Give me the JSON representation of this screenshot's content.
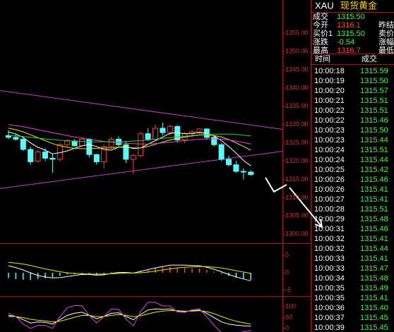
{
  "chart_data": [
    {
      "type": "candlestick",
      "ylim": [
        1298.5,
        1364.1
      ],
      "yticks": [
        {
          "value": 1300,
          "label": "1300.00"
        },
        {
          "value": 1305,
          "label": "1305.00"
        },
        {
          "value": 1310,
          "label": "1310.00"
        },
        {
          "value": 1315,
          "label": "1315.00"
        },
        {
          "value": 1320,
          "label": "1320.00"
        },
        {
          "value": 1325,
          "label": "1325.00"
        },
        {
          "value": 1330,
          "label": "1330.00"
        },
        {
          "value": 1335,
          "label": "1335.00"
        },
        {
          "value": 1340,
          "label": "1340.00"
        },
        {
          "value": 1345,
          "label": "1345.00"
        },
        {
          "value": 1350,
          "label": "1350.00"
        },
        {
          "value": 1355,
          "label": "1355.00"
        }
      ],
      "up_color": "#ff3c3c",
      "down_color": "#54fcfc",
      "open": [
        1327.0,
        1326.5,
        1326.0,
        1323.2,
        1320.0,
        1322.5,
        1320.8,
        1320.5,
        1324.5,
        1325.5,
        1324.2,
        1326.0,
        1321.8,
        1319.8,
        1324.0,
        1326.0,
        1324.5,
        1320.5,
        1321.5,
        1327.5,
        1326.0,
        1329.0,
        1327.8,
        1329.5,
        1325.8,
        1327.5,
        1328.0,
        1328.8,
        1326.5,
        1324.5,
        1320.5,
        1319.0,
        1317.2,
        1317.0
      ],
      "high": [
        1328.5,
        1327.5,
        1326.5,
        1324.0,
        1323.0,
        1323.5,
        1322.0,
        1325.0,
        1326.0,
        1326.0,
        1326.5,
        1326.3,
        1322.0,
        1324.5,
        1326.5,
        1326.8,
        1325.5,
        1322.0,
        1328.0,
        1329.0,
        1330.0,
        1330.5,
        1330.0,
        1329.8,
        1328.0,
        1328.5,
        1329.0,
        1329.0,
        1327.0,
        1325.0,
        1321.5,
        1320.0,
        1318.0,
        1317.5
      ],
      "low": [
        1326.0,
        1325.5,
        1322.8,
        1319.0,
        1319.5,
        1320.0,
        1316.8,
        1320.0,
        1324.0,
        1324.0,
        1323.8,
        1321.0,
        1319.0,
        1318.0,
        1323.5,
        1324.0,
        1319.5,
        1316.5,
        1321.0,
        1325.5,
        1325.5,
        1327.0,
        1327.0,
        1325.0,
        1325.0,
        1326.5,
        1327.5,
        1325.8,
        1324.0,
        1320.0,
        1318.5,
        1316.8,
        1315.0,
        1316.0
      ],
      "close": [
        1326.5,
        1326.0,
        1323.2,
        1319.8,
        1322.5,
        1320.8,
        1320.5,
        1324.5,
        1325.5,
        1324.2,
        1326.0,
        1321.8,
        1319.8,
        1324.0,
        1326.0,
        1324.5,
        1320.5,
        1321.5,
        1327.5,
        1326.0,
        1329.0,
        1327.8,
        1329.5,
        1325.8,
        1327.5,
        1328.0,
        1328.8,
        1326.5,
        1324.5,
        1320.5,
        1319.0,
        1317.2,
        1317.0,
        1316.3
      ],
      "series": [
        {
          "color": "#ffffff",
          "values": [
            1328,
            1327.4,
            1326.5,
            1325,
            1323.8,
            1323,
            1322,
            1322.3,
            1322.8,
            1323.5,
            1324.2,
            1324.5,
            1324,
            1323.2,
            1323,
            1323.8,
            1324,
            1323.4,
            1323.6,
            1324.6,
            1325.6,
            1326.6,
            1327.6,
            1327.8,
            1327.5,
            1327.6,
            1327.8,
            1327.6,
            1326.9,
            1325.6,
            1324,
            1322.2,
            1320.2,
            1318.7
          ]
        },
        {
          "color": "#e8e800",
          "values": [
            1329,
            1328.6,
            1328,
            1327.2,
            1326.4,
            1325.6,
            1324.8,
            1324.2,
            1323.8,
            1323.5,
            1323.4,
            1323.4,
            1323.5,
            1323.6,
            1323.6,
            1323.8,
            1323.8,
            1323.6,
            1323.6,
            1324,
            1324.6,
            1325.2,
            1325.8,
            1326.2,
            1326.6,
            1326.9,
            1327.1,
            1327.2,
            1327.0,
            1326.6,
            1325.9,
            1325,
            1324,
            1323
          ]
        },
        {
          "color": "#e040e0",
          "values": [
            1330,
            1329.7,
            1329.4,
            1329,
            1328.6,
            1328.2,
            1327.8,
            1327.4,
            1327,
            1326.6,
            1326.3,
            1326,
            1325.7,
            1325.4,
            1325.2,
            1325,
            1324.9,
            1324.8,
            1324.7,
            1324.7,
            1324.8,
            1325,
            1325.2,
            1325.4,
            1325.6,
            1325.8,
            1326,
            1326.1,
            1326.1,
            1326,
            1325.8,
            1325.5,
            1325.1,
            1324.7
          ]
        },
        {
          "color": "#30d030",
          "values": [
            1327,
            1326.9,
            1326.7,
            1326.5,
            1326.3,
            1326.1,
            1325.9,
            1325.7,
            1325.6,
            1325.5,
            1325.4,
            1325.3,
            1325.3,
            1325.3,
            1325.3,
            1325.3,
            1325.4,
            1325.5,
            1325.6,
            1325.8,
            1326,
            1326.2,
            1326.4,
            1326.6,
            1326.8,
            1327,
            1327.2,
            1327.3,
            1327.4,
            1327.4,
            1327.4,
            1327.3,
            1327.1,
            1326.9
          ]
        }
      ],
      "trendlines": [
        {
          "color": "#c040c0",
          "values": [
            1339.3,
            1328.7
          ]
        },
        {
          "color": "#c040c0",
          "values": [
            1312.5,
            1322.7
          ]
        }
      ]
    },
    {
      "type": "macd",
      "ylim": [
        -6.3,
        7.5
      ],
      "yticks": [
        5,
        0,
        -5
      ],
      "up_color": "#ff3c3c",
      "down_color": "#54fcfc",
      "values": [
        -1.5,
        -1.8,
        -2,
        -2.1,
        -1.8,
        -1.6,
        -1.3,
        -0.9,
        -0.5,
        -0.4,
        -0.3,
        -0.5,
        -0.6,
        -0.3,
        0.2,
        0.3,
        0.1,
        -0.1,
        0.6,
        0.9,
        1.4,
        1.6,
        1.8,
        1.5,
        1.4,
        1.3,
        1.2,
        0.8,
        0.3,
        -0.3,
        -0.9,
        -1.4,
        -1.8,
        -2.0
      ],
      "series": [
        {
          "color": "#ffffff",
          "values": [
            2,
            1.5,
            0.8,
            0,
            -0.8,
            -1.2,
            -1.5,
            -1.4,
            -1.1,
            -0.8,
            -0.5,
            -0.5,
            -0.7,
            -0.6,
            -0.2,
            0.1,
            0.1,
            -0.1,
            0.4,
            0.9,
            1.4,
            1.8,
            2.2,
            2.2,
            2.2,
            2.1,
            2,
            1.6,
            1,
            0.3,
            -0.5,
            -1.2,
            -1.8,
            -2.3
          ]
        },
        {
          "color": "#e8e800",
          "values": [
            3,
            2.8,
            2.5,
            2.1,
            1.6,
            1.1,
            0.7,
            0.3,
            0,
            -0.2,
            -0.3,
            -0.4,
            -0.4,
            -0.4,
            -0.3,
            -0.2,
            -0.1,
            -0.1,
            0,
            0.2,
            0.5,
            0.8,
            1.1,
            1.4,
            1.6,
            1.7,
            1.8,
            1.8,
            1.6,
            1.4,
            1.0,
            0.6,
            0.2,
            -0.2
          ]
        }
      ]
    },
    {
      "type": "kdj",
      "ylim": [
        -16.7,
        136.7
      ],
      "yticks": [
        100,
        50,
        0
      ],
      "series": [
        {
          "color": "#ffffff",
          "values": [
            60,
            55,
            40,
            25,
            30,
            28,
            20,
            40,
            60,
            70,
            75,
            60,
            45,
            55,
            70,
            72,
            55,
            40,
            65,
            85,
            90,
            88,
            90,
            80,
            78,
            82,
            85,
            70,
            50,
            30,
            20,
            15,
            12,
            10
          ]
        },
        {
          "color": "#e8e800",
          "values": [
            55,
            55,
            50,
            42,
            38,
            35,
            30,
            33,
            42,
            52,
            60,
            60,
            55,
            55,
            60,
            64,
            61,
            54,
            58,
            67,
            75,
            80,
            83,
            82,
            80,
            80,
            82,
            78,
            68,
            55,
            43,
            33,
            26,
            20
          ]
        },
        {
          "color": "#e040e0",
          "values": [
            70,
            55,
            20,
            0,
            14,
            14,
            0,
            54,
            96,
            106,
            105,
            60,
            25,
            55,
            90,
            88,
            43,
            12,
            79,
            121,
            120,
            104,
            104,
            76,
            74,
            86,
            91,
            54,
            14,
            -20,
            -26,
            -21,
            -16,
            -10
          ]
        }
      ]
    }
  ],
  "quote_panel": {
    "symbol": "XAU",
    "name": "现货黄金",
    "rows": [
      {
        "label": "成交",
        "value": "1315.50",
        "color": "#30ff30"
      },
      {
        "label": "今开",
        "value": "1316.1",
        "color": "#ff4040",
        "label2": "昨结"
      },
      {
        "label": "买价1",
        "value": "1315.50",
        "color": "#30ff30",
        "label2": "卖价"
      },
      {
        "label": "涨跌",
        "value": "-0.54",
        "color": "#30ff30",
        "label2": "涨幅"
      },
      {
        "label": "最高",
        "value": "1316.7",
        "color": "#ff4040",
        "label2": "最低"
      }
    ]
  },
  "trades": {
    "headers": [
      "时间",
      "成交"
    ],
    "color": "#30ff30",
    "rows": [
      [
        "10:00:18",
        "1315.59"
      ],
      [
        "10:00:19",
        "1315.50"
      ],
      [
        "10:00:20",
        "1315.57"
      ],
      [
        "10:00:21",
        "1315.51"
      ],
      [
        "10:00:22",
        "1315.51"
      ],
      [
        "10:00:22",
        "1315.46"
      ],
      [
        "10:00:23",
        "1315.50"
      ],
      [
        "10:00:23",
        "1315.44"
      ],
      [
        "10:00:24",
        "1315.51"
      ],
      [
        "10:00:24",
        "1315.44"
      ],
      [
        "10:00:25",
        "1315.42"
      ],
      [
        "10:00:26",
        "1315.46"
      ],
      [
        "10:00:26",
        "1315.41"
      ],
      [
        "10:00:27",
        "1315.41"
      ],
      [
        "10:00:28",
        "1315.51"
      ],
      [
        "10:00:29",
        "1315.48"
      ],
      [
        "10:00:31",
        "1315.46"
      ],
      [
        "10:00:32",
        "1315.41"
      ],
      [
        "10:00:32",
        "1315.44"
      ],
      [
        "10:00:33",
        "1315.41"
      ],
      [
        "10:00:33",
        "1315.47"
      ],
      [
        "10:00:34",
        "1315.48"
      ],
      [
        "10:00:35",
        "1315.49"
      ],
      [
        "10:00:35",
        "1315.41"
      ],
      [
        "10:00:36",
        "1315.40"
      ],
      [
        "10:00:37",
        "1315.45"
      ],
      [
        "10:00:39",
        "1315.45"
      ]
    ]
  }
}
